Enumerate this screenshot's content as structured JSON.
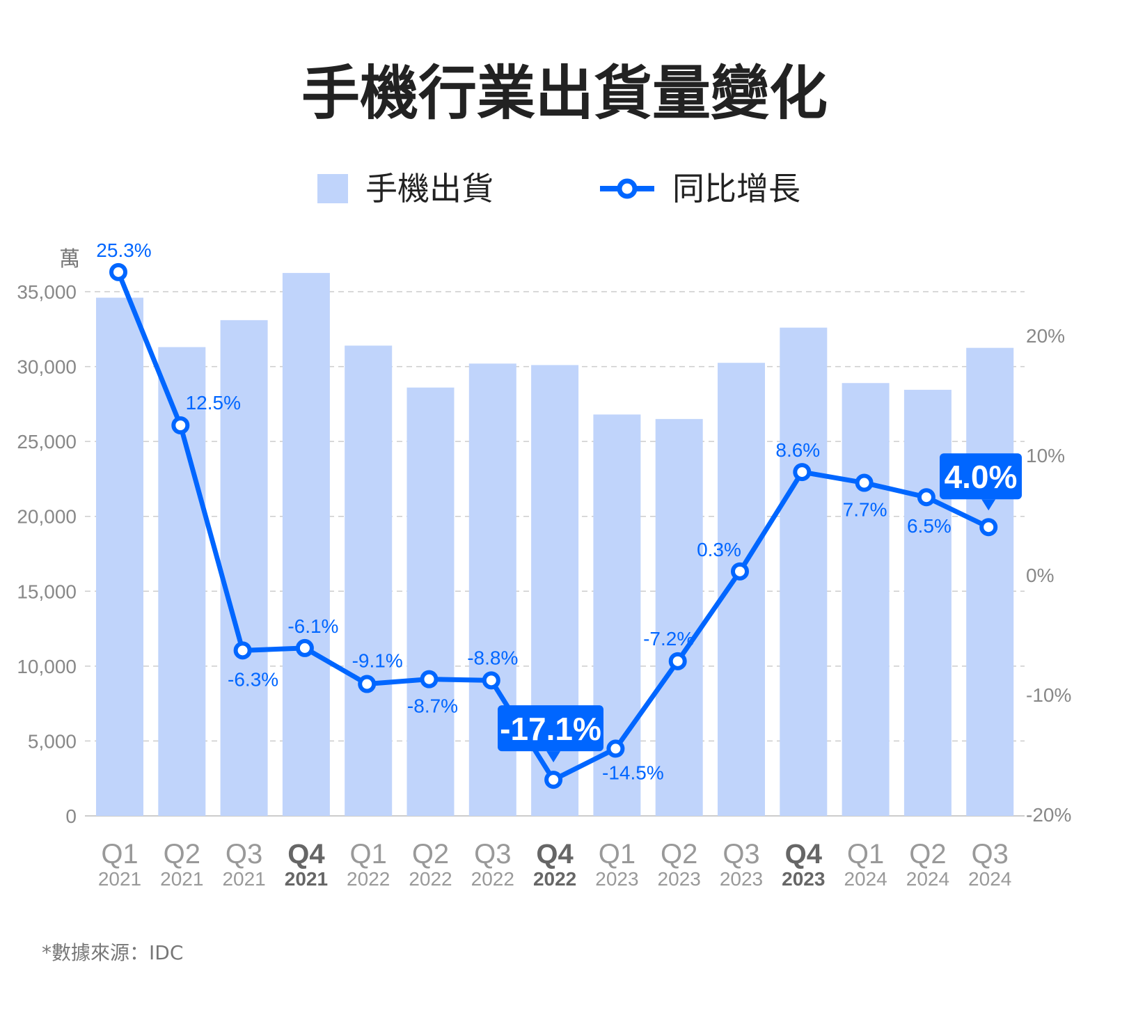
{
  "chart_data": {
    "type": "bar+line",
    "title": "手機行業出貨量變化",
    "legend": {
      "placement": "top",
      "entries": [
        "手機出貨",
        "同比增長"
      ]
    },
    "categories": [
      {
        "q": "Q1",
        "year": "2021"
      },
      {
        "q": "Q2",
        "year": "2021"
      },
      {
        "q": "Q3",
        "year": "2021"
      },
      {
        "q": "Q4",
        "year": "2021",
        "highlight": true
      },
      {
        "q": "Q1",
        "year": "2022"
      },
      {
        "q": "Q2",
        "year": "2022"
      },
      {
        "q": "Q3",
        "year": "2022"
      },
      {
        "q": "Q4",
        "year": "2022",
        "highlight": true
      },
      {
        "q": "Q1",
        "year": "2023"
      },
      {
        "q": "Q2",
        "year": "2023"
      },
      {
        "q": "Q3",
        "year": "2023"
      },
      {
        "q": "Q4",
        "year": "2023",
        "highlight": true
      },
      {
        "q": "Q1",
        "year": "2024"
      },
      {
        "q": "Q2",
        "year": "2024"
      },
      {
        "q": "Q3",
        "year": "2024"
      }
    ],
    "series": [
      {
        "name": "手機出貨",
        "type": "bar",
        "axis": "left",
        "color": "#c0d4fb",
        "values": [
          34600,
          31300,
          33100,
          36250,
          31400,
          28600,
          30200,
          30100,
          26800,
          26500,
          30250,
          32600,
          28900,
          28450,
          31250
        ]
      },
      {
        "name": "同比增長",
        "type": "line",
        "axis": "right",
        "color": "#0066ff",
        "values": [
          25.3,
          12.5,
          -6.3,
          -6.1,
          -9.1,
          -8.7,
          -8.8,
          -17.1,
          -14.5,
          -7.2,
          0.3,
          8.6,
          7.7,
          6.5,
          4.0
        ],
        "labels": [
          "25.3%",
          "12.5%",
          "-6.3%",
          "-6.1%",
          "-9.1%",
          "-8.7%",
          "-8.8%",
          "-17.1%",
          "-14.5%",
          "-7.2%",
          "0.3%",
          "8.6%",
          "7.7%",
          "6.5%",
          "4.0%"
        ],
        "highlighted": [
          7,
          14
        ]
      }
    ],
    "left_axis": {
      "unit": "萬",
      "ylim": [
        0,
        35000
      ],
      "ticks": [
        "0",
        "5,000",
        "10,000",
        "15,000",
        "20,000",
        "25,000",
        "30,000",
        "35,000"
      ],
      "tick_values": [
        0,
        5000,
        10000,
        15000,
        20000,
        25000,
        30000,
        35000
      ]
    },
    "right_axis": {
      "ylim": [
        -20,
        20
      ],
      "ticks": [
        "-20%",
        "-10%",
        "0%",
        "10%",
        "20%"
      ],
      "tick_values": [
        -20,
        -10,
        0,
        10,
        20
      ]
    },
    "grid": true
  },
  "footer": {
    "source": "*數據來源：IDC"
  }
}
